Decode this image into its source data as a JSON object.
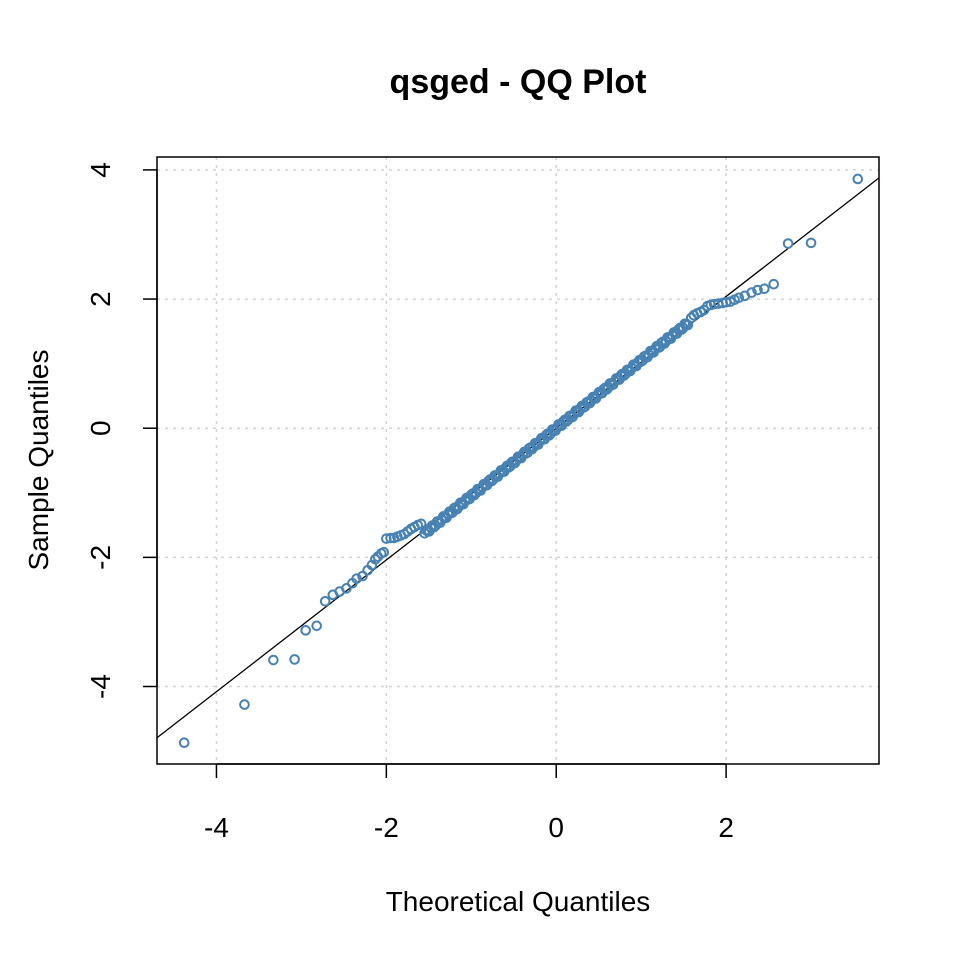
{
  "chart_data": {
    "type": "scatter",
    "title": "qsged - QQ Plot",
    "xlabel": "Theoretical Quantiles",
    "ylabel": "Sample Quantiles",
    "xlim": [
      -4.7,
      3.8
    ],
    "ylim": [
      -5.2,
      4.2
    ],
    "x_ticks": [
      -4,
      -2,
      0,
      2
    ],
    "x_tick_labels": [
      "-4",
      "-2",
      "0",
      "2"
    ],
    "y_ticks": [
      -4,
      -2,
      0,
      2,
      4
    ],
    "y_tick_labels": [
      "-4",
      "-2",
      "0",
      "2",
      "4"
    ],
    "grid": true,
    "point_color": "#4682b4",
    "line_color": "#000000",
    "reference_line": {
      "intercept": 0.0,
      "slope": 1.02
    },
    "tail_points": [
      {
        "x": -4.38,
        "y": -4.87
      },
      {
        "x": -3.67,
        "y": -4.28
      },
      {
        "x": -3.33,
        "y": -3.59
      },
      {
        "x": -3.08,
        "y": -3.58
      },
      {
        "x": -2.95,
        "y": -3.13
      },
      {
        "x": -2.82,
        "y": -3.06
      },
      {
        "x": -2.72,
        "y": -2.68
      },
      {
        "x": -2.63,
        "y": -2.58
      },
      {
        "x": -2.55,
        "y": -2.53
      },
      {
        "x": -2.47,
        "y": -2.48
      },
      {
        "x": -2.4,
        "y": -2.4
      },
      {
        "x": -2.35,
        "y": -2.33
      },
      {
        "x": -2.28,
        "y": -2.29
      },
      {
        "x": -2.22,
        "y": -2.2
      },
      {
        "x": -2.17,
        "y": -2.12
      },
      {
        "x": -2.13,
        "y": -2.03
      },
      {
        "x": -2.1,
        "y": -1.99
      },
      {
        "x": -2.06,
        "y": -1.94
      },
      {
        "x": -2.03,
        "y": -1.92
      },
      {
        "x": -2.0,
        "y": -1.71
      },
      {
        "x": -1.95,
        "y": -1.7
      },
      {
        "x": -1.91,
        "y": -1.7
      },
      {
        "x": -1.87,
        "y": -1.68
      },
      {
        "x": -1.83,
        "y": -1.66
      },
      {
        "x": -1.79,
        "y": -1.64
      },
      {
        "x": -1.75,
        "y": -1.6
      },
      {
        "x": -1.71,
        "y": -1.56
      },
      {
        "x": -1.67,
        "y": -1.53
      },
      {
        "x": -1.63,
        "y": -1.5
      },
      {
        "x": -1.59,
        "y": -1.48
      },
      {
        "x": 1.59,
        "y": 1.71
      },
      {
        "x": 1.62,
        "y": 1.75
      },
      {
        "x": 1.66,
        "y": 1.78
      },
      {
        "x": 1.7,
        "y": 1.8
      },
      {
        "x": 1.74,
        "y": 1.83
      },
      {
        "x": 1.78,
        "y": 1.89
      },
      {
        "x": 1.82,
        "y": 1.91
      },
      {
        "x": 1.86,
        "y": 1.92
      },
      {
        "x": 1.91,
        "y": 1.93
      },
      {
        "x": 1.96,
        "y": 1.94
      },
      {
        "x": 2.0,
        "y": 1.95
      },
      {
        "x": 2.05,
        "y": 1.96
      },
      {
        "x": 2.1,
        "y": 1.99
      },
      {
        "x": 2.15,
        "y": 2.02
      },
      {
        "x": 2.22,
        "y": 2.05
      },
      {
        "x": 2.3,
        "y": 2.1
      },
      {
        "x": 2.37,
        "y": 2.14
      },
      {
        "x": 2.45,
        "y": 2.16
      },
      {
        "x": 2.56,
        "y": 2.23
      },
      {
        "x": 2.73,
        "y": 2.86
      },
      {
        "x": 3.0,
        "y": 2.87
      },
      {
        "x": 3.55,
        "y": 3.86
      }
    ],
    "body_range": [
      -1.55,
      1.55
    ],
    "body_count": 170,
    "body_slope": 1.05,
    "body_wiggle": 0.03
  }
}
